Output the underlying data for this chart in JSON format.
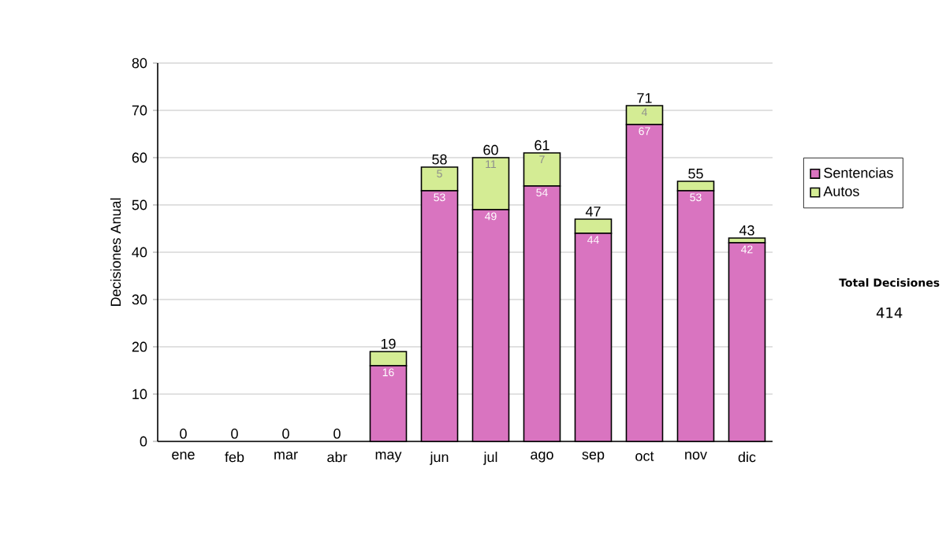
{
  "chart_data": {
    "type": "bar",
    "stacked": true,
    "ylabel": "Decisiones Anual",
    "categories": [
      "ene",
      "feb",
      "mar",
      "abr",
      "may",
      "jun",
      "jul",
      "ago",
      "sep",
      "oct",
      "nov",
      "dic"
    ],
    "series": [
      {
        "name": "Sentencias",
        "color": "#d974c0",
        "values": [
          0,
          0,
          0,
          0,
          16,
          53,
          49,
          54,
          44,
          67,
          53,
          42
        ],
        "value_labels": [
          null,
          null,
          null,
          null,
          "16",
          "53",
          "49",
          "54",
          "44",
          "67",
          "53",
          "42"
        ]
      },
      {
        "name": "Autos",
        "color": "#d4ec94",
        "values": [
          0,
          0,
          0,
          0,
          3,
          5,
          11,
          7,
          3,
          4,
          2,
          1
        ],
        "value_labels": [
          null,
          null,
          null,
          null,
          null,
          "5",
          "11",
          "7",
          null,
          "4",
          null,
          null
        ]
      }
    ],
    "totals": [
      "0",
      "0",
      "0",
      "0",
      "19",
      "58",
      "60",
      "61",
      "47",
      "71",
      "55",
      "43"
    ],
    "ylim": [
      0,
      80
    ],
    "yticks": [
      0,
      10,
      20,
      30,
      40,
      50,
      60,
      70,
      80
    ],
    "grid": "y",
    "legend": "right",
    "annotations": [
      "Total Decisiones",
      "414"
    ]
  }
}
